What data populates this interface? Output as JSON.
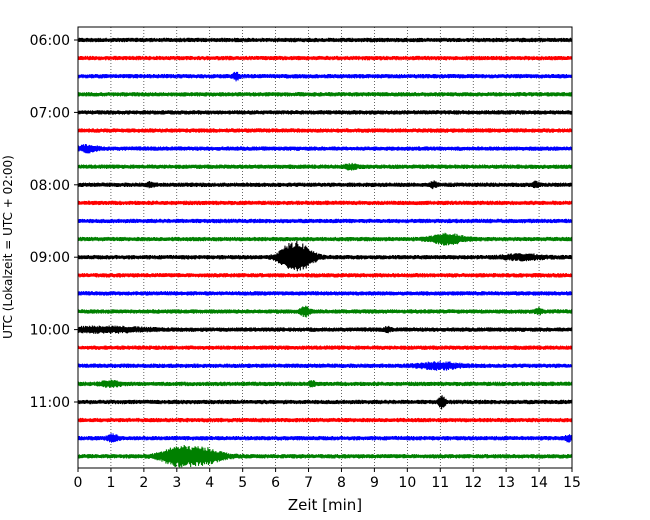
{
  "chart_data": {
    "type": "line",
    "title": "",
    "xlabel": "Zeit  [min]",
    "ylabel": "UTC (Lokalzeit = UTC + 02:00)",
    "xlim": [
      0,
      15
    ],
    "x_ticks": [
      0,
      1,
      2,
      3,
      4,
      5,
      6,
      7,
      8,
      9,
      10,
      11,
      12,
      13,
      14,
      15
    ],
    "x_tick_labels": [
      "0",
      "1",
      "2",
      "3",
      "4",
      "5",
      "6",
      "7",
      "8",
      "9",
      "10",
      "11",
      "12",
      "13",
      "14",
      "15"
    ],
    "y_ticks": [
      {
        "label": "06:00",
        "trace_index": 0
      },
      {
        "label": "07:00",
        "trace_index": 4
      },
      {
        "label": "08:00",
        "trace_index": 8
      },
      {
        "label": "09:00",
        "trace_index": 12
      },
      {
        "label": "10:00",
        "trace_index": 16
      },
      {
        "label": "11:00",
        "trace_index": 20
      }
    ],
    "grid": "vertical-dotted",
    "trace_interval_min": 15,
    "trace_count": 24,
    "trace_colors": [
      "#000000",
      "#ff0000",
      "#0000ff",
      "#008000"
    ],
    "events": [
      {
        "trace_index": 2,
        "t_min": 4.8,
        "amp": 1.4,
        "dur": 0.1
      },
      {
        "trace_index": 6,
        "t_min": 0.3,
        "amp": 1.2,
        "dur": 0.3
      },
      {
        "trace_index": 7,
        "t_min": 8.3,
        "amp": 0.9,
        "dur": 0.2
      },
      {
        "trace_index": 8,
        "t_min": 2.2,
        "amp": 0.9,
        "dur": 0.1
      },
      {
        "trace_index": 8,
        "t_min": 10.8,
        "amp": 1.1,
        "dur": 0.1
      },
      {
        "trace_index": 8,
        "t_min": 13.9,
        "amp": 1.0,
        "dur": 0.1
      },
      {
        "trace_index": 11,
        "t_min": 11.2,
        "amp": 2.0,
        "dur": 0.5
      },
      {
        "trace_index": 12,
        "t_min": 6.45,
        "amp": 5.0,
        "dur": 0.35
      },
      {
        "trace_index": 12,
        "t_min": 6.85,
        "amp": 4.0,
        "dur": 0.35
      },
      {
        "trace_index": 12,
        "t_min": 13.5,
        "amp": 1.0,
        "dur": 0.6
      },
      {
        "trace_index": 15,
        "t_min": 6.9,
        "amp": 1.8,
        "dur": 0.15
      },
      {
        "trace_index": 15,
        "t_min": 14.0,
        "amp": 1.2,
        "dur": 0.1
      },
      {
        "trace_index": 16,
        "t_min": 0.8,
        "amp": 1.0,
        "dur": 1.2
      },
      {
        "trace_index": 16,
        "t_min": 9.4,
        "amp": 0.9,
        "dur": 0.1
      },
      {
        "trace_index": 18,
        "t_min": 11.0,
        "amp": 1.3,
        "dur": 0.6
      },
      {
        "trace_index": 19,
        "t_min": 1.0,
        "amp": 1.0,
        "dur": 0.3
      },
      {
        "trace_index": 19,
        "t_min": 7.1,
        "amp": 1.0,
        "dur": 0.1
      },
      {
        "trace_index": 20,
        "t_min": 11.05,
        "amp": 2.4,
        "dur": 0.1
      },
      {
        "trace_index": 22,
        "t_min": 1.05,
        "amp": 1.5,
        "dur": 0.15
      },
      {
        "trace_index": 22,
        "t_min": 14.9,
        "amp": 1.1,
        "dur": 0.1
      },
      {
        "trace_index": 23,
        "t_min": 3.0,
        "amp": 3.5,
        "dur": 0.5
      },
      {
        "trace_index": 23,
        "t_min": 3.8,
        "amp": 3.3,
        "dur": 0.6
      }
    ]
  }
}
